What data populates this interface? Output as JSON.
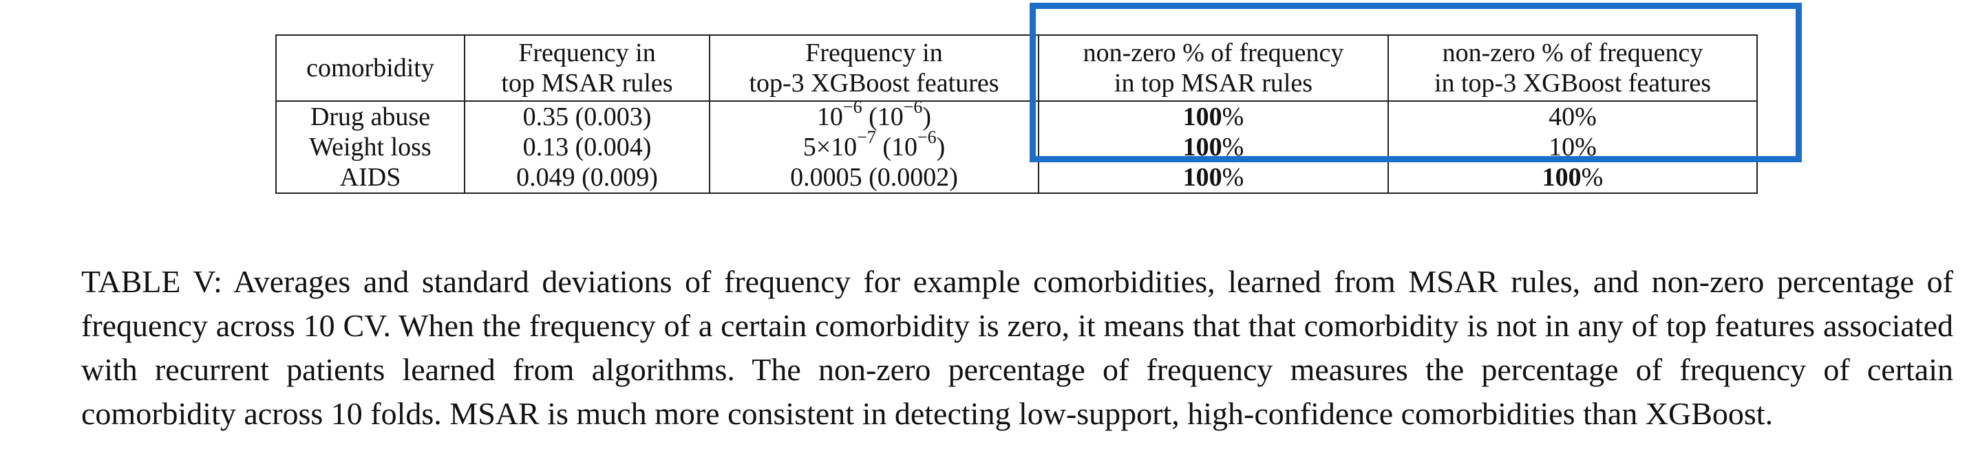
{
  "table": {
    "headers": [
      {
        "line1": "comorbidity",
        "line2": ""
      },
      {
        "line1": "Frequency in",
        "line2": "top MSAR rules"
      },
      {
        "line1": "Frequency in",
        "line2": "top-3 XGBoost features"
      },
      {
        "line1": "non-zero % of frequency",
        "line2": "in top MSAR rules"
      },
      {
        "line1": "non-zero % of frequency",
        "line2": "in top-3 XGBoost features"
      }
    ],
    "rows": [
      {
        "comorbidity": "Drug abuse",
        "msar_freq": "0.35 (0.003)",
        "xgb_freq": {
          "a_base": "10",
          "a_exp": "−6",
          "b_base": "10",
          "b_exp": "−6"
        },
        "msar_nonzero": {
          "num": "100",
          "pct": "%"
        },
        "xgb_nonzero": {
          "num": "40",
          "pct": "%"
        }
      },
      {
        "comorbidity": "Weight loss",
        "msar_freq": "0.13 (0.004)",
        "xgb_freq": {
          "a_base": "5×10",
          "a_exp": "−7",
          "b_base": "10",
          "b_exp": "−6"
        },
        "msar_nonzero": {
          "num": "100",
          "pct": "%"
        },
        "xgb_nonzero": {
          "num": "10",
          "pct": "%"
        }
      },
      {
        "comorbidity": "AIDS",
        "msar_freq": "0.049 (0.009)",
        "xgb_freq_text": "0.0005 (0.0002)",
        "msar_nonzero": {
          "num": "100",
          "pct": "%"
        },
        "xgb_nonzero": {
          "num": "100",
          "pct": "%"
        }
      }
    ]
  },
  "caption": "TABLE V: Averages and standard deviations of frequency for example comorbidities, learned from MSAR rules, and non-zero percentage of frequency across 10 CV. When the frequency of a certain comorbidity is zero, it means that that comorbidity is not in any of top features associated with recurrent patients learned from algorithms. The non-zero percentage of frequency measures the percentage of frequency of certain comorbidity across 10 folds. MSAR is much more consistent in detecting low-support, high-confidence comorbidities than XGBoost.",
  "highlight": {
    "color": "#1b6fc9"
  }
}
